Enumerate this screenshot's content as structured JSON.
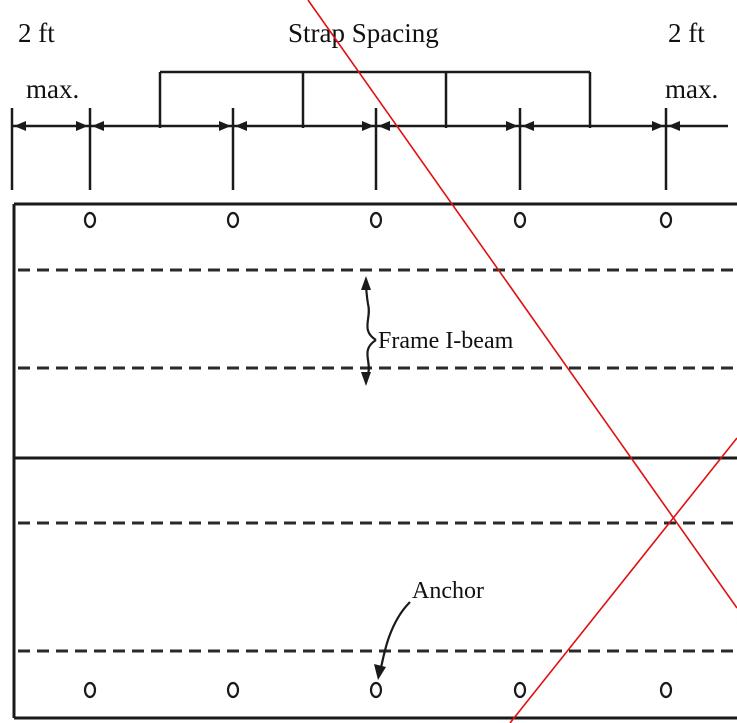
{
  "labels": {
    "left_dim_value": "2 ft",
    "left_dim_max": "max.",
    "strap_spacing": "Strap Spacing",
    "right_dim_value": "2 ft",
    "right_dim_max": "max.",
    "frame_ibeam": "Frame I-beam",
    "anchor": "Anchor"
  },
  "colors": {
    "line": "#1a1a1a",
    "dashed": "#2a2a2a",
    "cross_out": "#e01010"
  },
  "anchors": {
    "top_row_count": 5,
    "bottom_row_count": 5
  },
  "overlay": {
    "cross_out_marks": "red-x"
  }
}
